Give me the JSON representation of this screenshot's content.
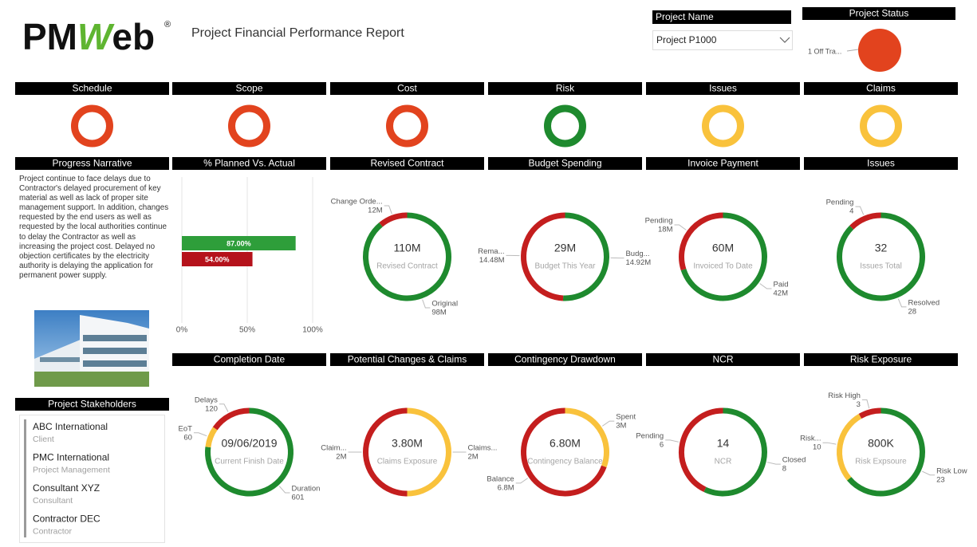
{
  "header": {
    "logo": {
      "left": "PM",
      "mark": "W",
      "right": "eb",
      "registered": "®"
    },
    "title": "Project Financial Performance Report"
  },
  "project_name": {
    "label": "Project Name",
    "selected": "Project P1000"
  },
  "project_status": {
    "label": "Project Status",
    "status": "1 Off Tra...",
    "color": "#e2431e"
  },
  "status_indicators": [
    {
      "label": "Schedule",
      "color": "#e2431e"
    },
    {
      "label": "Scope",
      "color": "#e2431e"
    },
    {
      "label": "Cost",
      "color": "#e2431e"
    },
    {
      "label": "Risk",
      "color": "#1e8a2e"
    },
    {
      "label": "Issues",
      "color": "#f9c23c"
    },
    {
      "label": "Claims",
      "color": "#f9c23c"
    }
  ],
  "narrative": {
    "title": "Progress Narrative",
    "text": "Project continue to face delays due to Contractor's delayed procurement of key material as well as lack of proper site management support. In addition, changes requested by the end users as well as requested by the local authorities continue to delay the Contractor as well as increasing the project cost. Delayed no objection certificates by the electricity authority is delaying the application for permanent power supply."
  },
  "stakeholders": {
    "title": "Project Stakeholders",
    "items": [
      {
        "name": "ABC International",
        "role": "Client"
      },
      {
        "name": "PMC International",
        "role": "Project Management"
      },
      {
        "name": "Consultant XYZ",
        "role": "Consultant"
      },
      {
        "name": "Contractor DEC",
        "role": "Contractor"
      }
    ]
  },
  "chart_data": [
    {
      "type": "bar",
      "orientation": "horizontal",
      "title": "% Planned Vs. Actual",
      "values": [
        87,
        54
      ],
      "value_labels": [
        "87.00%",
        "54.00%"
      ],
      "colors": [
        "#2e9e3a",
        "#b5121b"
      ],
      "xlim": [
        0,
        100
      ],
      "xticks": [
        {
          "value": 0,
          "label": "0%"
        },
        {
          "value": 50,
          "label": "50%"
        },
        {
          "value": 100,
          "label": "100%"
        }
      ],
      "grid": true
    },
    {
      "type": "donut",
      "title": "Revised Contract",
      "center_value": "110M",
      "center_label": "Revised Contract",
      "categories": [
        "Original",
        "Change Orde..."
      ],
      "values": [
        98,
        12
      ],
      "value_labels": [
        "98M",
        "12M"
      ],
      "colors": [
        "#1e8a2e",
        "#c41e1e"
      ]
    },
    {
      "type": "donut",
      "title": "Budget Spending",
      "center_value": "29M",
      "center_label": "Budget This Year",
      "categories": [
        "Budg...",
        "Rema..."
      ],
      "values": [
        14.92,
        14.48
      ],
      "value_labels": [
        "14.92M",
        "14.48M"
      ],
      "colors": [
        "#1e8a2e",
        "#c41e1e"
      ]
    },
    {
      "type": "donut",
      "title": "Invoice Payment",
      "center_value": "60M",
      "center_label": "Invoiced To Date",
      "categories": [
        "Paid",
        "Pending"
      ],
      "values": [
        42,
        18
      ],
      "value_labels": [
        "42M",
        "18M"
      ],
      "colors": [
        "#1e8a2e",
        "#c41e1e"
      ]
    },
    {
      "type": "donut",
      "title": "Issues",
      "center_value": "32",
      "center_label": "Issues Total",
      "categories": [
        "Resolved",
        "Pending"
      ],
      "values": [
        28,
        4
      ],
      "colors": [
        "#1e8a2e",
        "#c41e1e"
      ]
    },
    {
      "type": "donut",
      "title": "Completion Date",
      "center_value": "09/06/2019",
      "center_label": "Current Finish Date",
      "categories": [
        "Duration",
        "EoT",
        "Delays"
      ],
      "values": [
        601,
        60,
        120
      ],
      "colors": [
        "#1e8a2e",
        "#f9c23c",
        "#c41e1e"
      ]
    },
    {
      "type": "donut",
      "title": "Potential Changes & Claims",
      "center_value": "3.80M",
      "center_label": "Claims Exposure",
      "categories": [
        "Claims...",
        "Claim..."
      ],
      "values": [
        2,
        2
      ],
      "value_labels": [
        "2M",
        "2M"
      ],
      "colors": [
        "#f9c23c",
        "#c41e1e"
      ]
    },
    {
      "type": "donut",
      "title": "Contingency Drawdown",
      "center_value": "6.80M",
      "center_label": "Contingency Balance",
      "categories": [
        "Spent",
        "Balance"
      ],
      "values": [
        3,
        6.8
      ],
      "value_labels": [
        "3M",
        "6.8M"
      ],
      "colors": [
        "#f9c23c",
        "#c41e1e"
      ]
    },
    {
      "type": "donut",
      "title": "NCR",
      "center_value": "14",
      "center_label": "NCR",
      "categories": [
        "Closed",
        "Pending"
      ],
      "values": [
        8,
        6
      ],
      "colors": [
        "#1e8a2e",
        "#c41e1e"
      ]
    },
    {
      "type": "donut",
      "title": "Risk Exposure",
      "center_value": "800K",
      "center_label": "Risk Expsoure",
      "categories": [
        "Risk Low",
        "Risk...",
        "Risk High"
      ],
      "values": [
        23,
        10,
        3
      ],
      "colors": [
        "#1e8a2e",
        "#f9c23c",
        "#c41e1e"
      ]
    }
  ]
}
